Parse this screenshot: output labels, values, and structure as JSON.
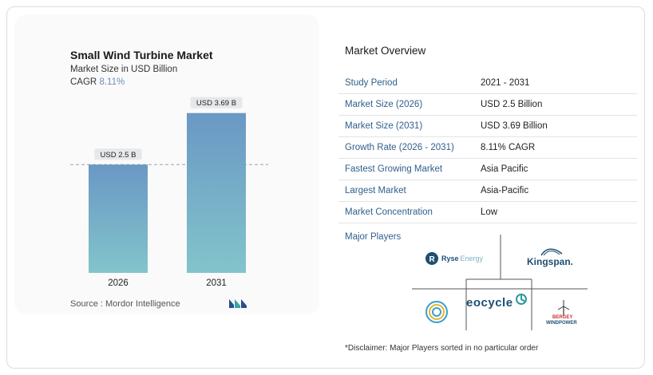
{
  "chart": {
    "title": "Small Wind Turbine Market",
    "subtitle": "Market Size in USD Billion",
    "cagr_label": "CAGR",
    "cagr_value": "8.11%",
    "source": "Source : Mordor Intelligence"
  },
  "chart_data": {
    "type": "bar",
    "categories": [
      "2026",
      "2031"
    ],
    "values": [
      2.5,
      3.69
    ],
    "data_labels": [
      "USD 2.5 B",
      "USD 3.69 B"
    ],
    "title": "Small Wind Turbine Market",
    "subtitle": "Market Size in USD Billion",
    "ylim": [
      0,
      4.2
    ],
    "reference_line": 2.5,
    "grid": false,
    "colors": {
      "bar_top": "#6a98c4",
      "bar_bottom": "#82c4cb"
    }
  },
  "overview": {
    "title": "Market Overview",
    "rows": [
      {
        "label": "Study Period",
        "value": "2021 - 2031"
      },
      {
        "label": "Market Size (2026)",
        "value": "USD 2.5 Billion"
      },
      {
        "label": "Market Size (2031)",
        "value": "USD 3.69 Billion"
      },
      {
        "label": "Growth Rate (2026 - 2031)",
        "value": "8.11% CAGR"
      },
      {
        "label": "Fastest Growing Market",
        "value": "Asia Pacific"
      },
      {
        "label": "Largest Market",
        "value": "Asia-Pacific"
      },
      {
        "label": "Market Concentration",
        "value": "Low"
      }
    ],
    "players_label": "Major Players",
    "players": [
      {
        "name": "Ryse Energy",
        "text1": "Ryse",
        "text2": "Energy"
      },
      {
        "name": "Kingspan",
        "text1": "Kingspan."
      },
      {
        "name": "Eocycle",
        "text1": "eocycle"
      },
      {
        "name": "Bergey WindPower",
        "text1": "BERGEY",
        "text2": "WINDPOWER"
      },
      {
        "name": "Primus Wind Power",
        "text1": ""
      }
    ],
    "disclaimer": "*Disclaimer: Major Players sorted in no particular order"
  },
  "colors": {
    "accent_label": "#2f5f8c",
    "cagr_value": "#6c8fb6",
    "brand_teal": "#2a9aa0"
  }
}
